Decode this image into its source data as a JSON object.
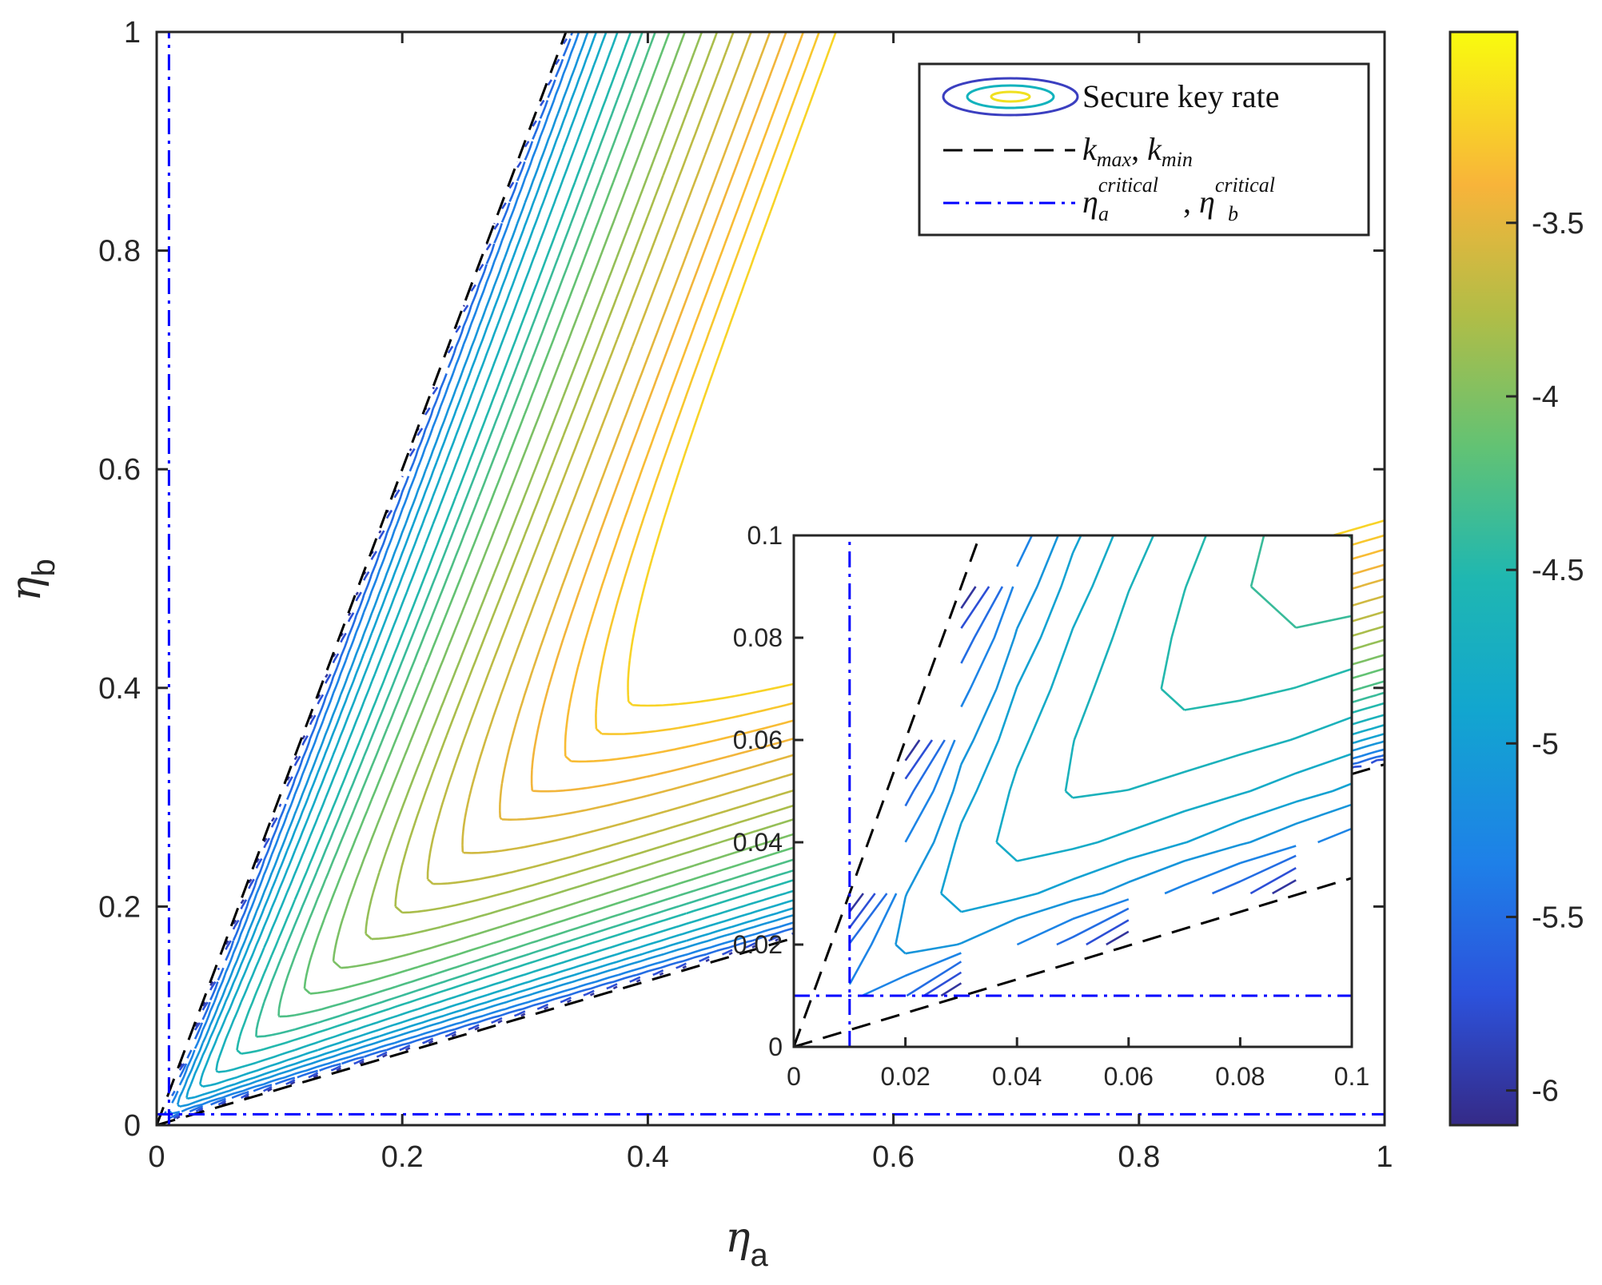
{
  "chart_data": {
    "type": "contour",
    "title": "",
    "xlabel": "η",
    "xlabel_sub": "a",
    "ylabel": "η",
    "ylabel_sub": "b",
    "xlim": [
      0,
      1
    ],
    "ylim": [
      0,
      1
    ],
    "xticks": [
      "0",
      "0.2",
      "0.4",
      "0.6",
      "0.8",
      "1"
    ],
    "yticks": [
      "0",
      "0.2",
      "0.4",
      "0.6",
      "0.8",
      "1"
    ],
    "k_max": 3.0,
    "k_min": 0.33,
    "eta_a_critical": 0.01,
    "eta_b_critical": 0.01,
    "contour_levels": [
      -6.0,
      -5.75,
      -5.5,
      -5.3,
      -5.1,
      -4.95,
      -4.8,
      -4.65,
      -4.5,
      -4.38,
      -4.26,
      -4.14,
      -4.02,
      -3.9,
      -3.8,
      -3.7,
      -3.6,
      -3.5,
      -3.42,
      -3.34,
      -3.27,
      -3.2
    ],
    "colorbar": {
      "range": [
        -6.1,
        -2.95
      ],
      "ticks": [
        "-3.5",
        "-4",
        "-4.5",
        "-5",
        "-5.5",
        "-6"
      ],
      "tick_values": [
        -3.5,
        -4,
        -4.5,
        -5,
        -5.5,
        -6
      ],
      "colormap": "parula"
    },
    "legend": {
      "position": "top-right",
      "entries": [
        {
          "label": "Secure key rate",
          "style": "contour"
        },
        {
          "label_main": "k",
          "sub1": "max",
          "sep": ", ",
          "label_main2": "k",
          "sub2": "min",
          "style": "dashed",
          "color": "#000000"
        },
        {
          "label_main": "η",
          "sup1": "critical",
          "sub1": "a",
          "sep": ", ",
          "label_main2": "η",
          "sup2": "critical",
          "sub2": "b",
          "style": "dashdot",
          "color": "#0000ff"
        }
      ]
    },
    "inset": {
      "xlim": [
        0,
        0.1
      ],
      "ylim": [
        0,
        0.1
      ],
      "xticks": [
        "0",
        "0.02",
        "0.04",
        "0.06",
        "0.08",
        "0.1"
      ],
      "yticks": [
        "0",
        "0.02",
        "0.04",
        "0.06",
        "0.08",
        "0.1"
      ],
      "grid_step": 0.01
    }
  }
}
